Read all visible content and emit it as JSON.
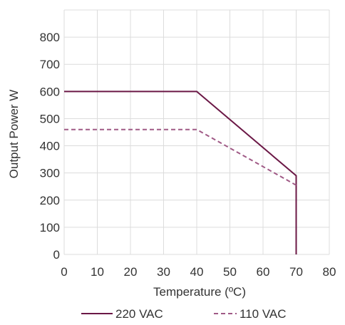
{
  "chart_data": {
    "type": "line",
    "title": "",
    "xlabel": "Temperature (ºC)",
    "ylabel": "Output Power W",
    "xlim": [
      0,
      80
    ],
    "ylim": [
      0,
      900
    ],
    "x_ticks": [
      0,
      10,
      20,
      30,
      40,
      50,
      60,
      70,
      80
    ],
    "y_ticks": [
      0,
      100,
      200,
      300,
      400,
      500,
      600,
      700,
      800
    ],
    "grid": true,
    "legend_position": "bottom",
    "series": [
      {
        "name": "220 VAC",
        "style": "solid",
        "color": "#6b1846",
        "points": [
          [
            0,
            600
          ],
          [
            40,
            600
          ],
          [
            70,
            290
          ],
          [
            70,
            0
          ]
        ]
      },
      {
        "name": "110 VAC",
        "style": "dashed",
        "color": "#a05a86",
        "points": [
          [
            0,
            460
          ],
          [
            40,
            460
          ],
          [
            70,
            255
          ]
        ]
      }
    ]
  }
}
